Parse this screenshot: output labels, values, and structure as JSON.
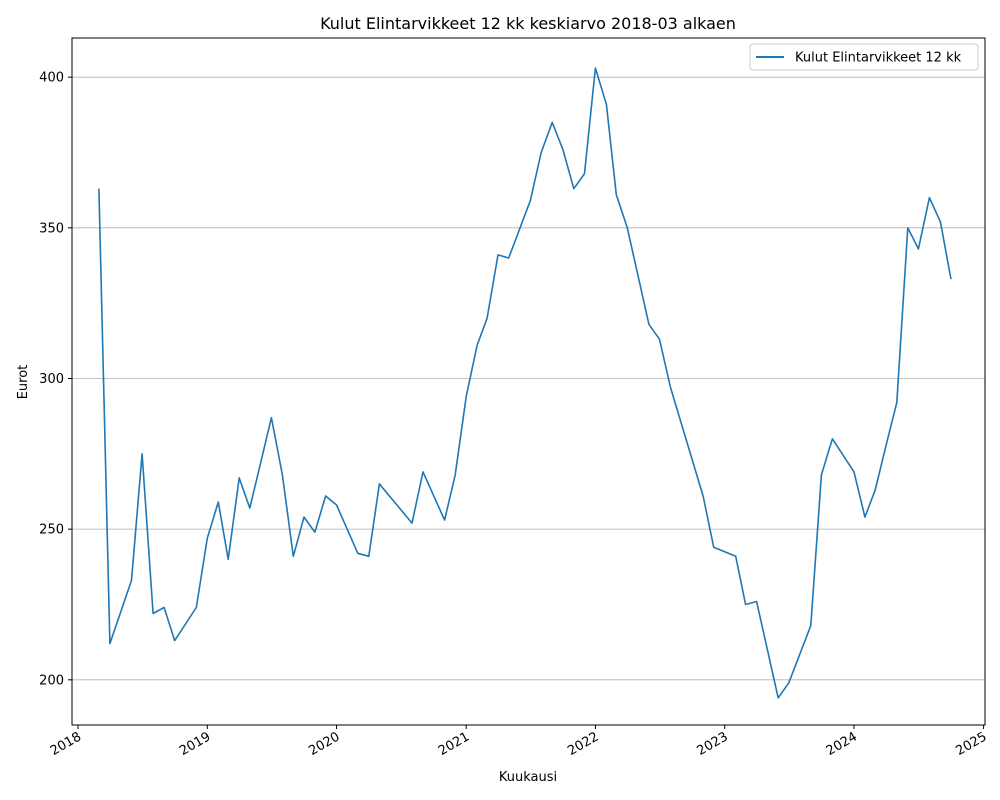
{
  "chart_data": {
    "type": "line",
    "title": "Kulut Elintarvikkeet 12 kk keskiarvo 2018-03 alkaen",
    "xlabel": "Kuukausi",
    "ylabel": "Eurot",
    "xlim": [
      "2017-12-15",
      "2025-01-05"
    ],
    "ylim": [
      185,
      413
    ],
    "x_ticks": [
      "2018-01-01",
      "2019-01-01",
      "2020-01-01",
      "2021-01-01",
      "2022-01-01",
      "2023-01-01",
      "2024-01-01",
      "2025-01-01"
    ],
    "x_tick_labels": [
      "2018",
      "2019",
      "2020",
      "2021",
      "2022",
      "2023",
      "2024",
      "2025"
    ],
    "y_ticks": [
      200,
      250,
      300,
      350,
      400
    ],
    "y_tick_labels": [
      "200",
      "250",
      "300",
      "350",
      "400"
    ],
    "grid": "y",
    "legend_position": "top-right",
    "line_color": "#1f77b4",
    "series": [
      {
        "name": "Kulut Elintarvikkeet 12 kk",
        "x": [
          "2018-03",
          "2018-04",
          "2018-06",
          "2018-07",
          "2018-08",
          "2018-09",
          "2018-10",
          "2018-12",
          "2019-01",
          "2019-02",
          "2019-03",
          "2019-04",
          "2019-05",
          "2019-07",
          "2019-08",
          "2019-09",
          "2019-10",
          "2019-11",
          "2019-12",
          "2020-01",
          "2020-03",
          "2020-04",
          "2020-05",
          "2020-08",
          "2020-09",
          "2020-11",
          "2020-12",
          "2021-01",
          "2021-02",
          "2021-03",
          "2021-04",
          "2021-05",
          "2021-07",
          "2021-08",
          "2021-09",
          "2021-10",
          "2021-11",
          "2021-12",
          "2022-01",
          "2022-02",
          "2022-03",
          "2022-04",
          "2022-06",
          "2022-07",
          "2022-08",
          "2022-11",
          "2022-12",
          "2023-02",
          "2023-03",
          "2023-04",
          "2023-06",
          "2023-07",
          "2023-09",
          "2023-10",
          "2023-11",
          "2024-01",
          "2024-02",
          "2024-03",
          "2024-04",
          "2024-05",
          "2024-06",
          "2024-07",
          "2024-08",
          "2024-09",
          "2024-10"
        ],
        "values": [
          363,
          212,
          233,
          275,
          222,
          224,
          213,
          224,
          247,
          259,
          240,
          267,
          257,
          287,
          268,
          241,
          254,
          249,
          261,
          258,
          242,
          241,
          265,
          252,
          269,
          253,
          268,
          294,
          311,
          320,
          341,
          340,
          359,
          375,
          385,
          376,
          363,
          368,
          403,
          391,
          361,
          350,
          318,
          313,
          297,
          261,
          244,
          241,
          225,
          226,
          194,
          199,
          218,
          268,
          280,
          269,
          254,
          263,
          278,
          292,
          350,
          343,
          360,
          352,
          333
        ]
      }
    ]
  }
}
